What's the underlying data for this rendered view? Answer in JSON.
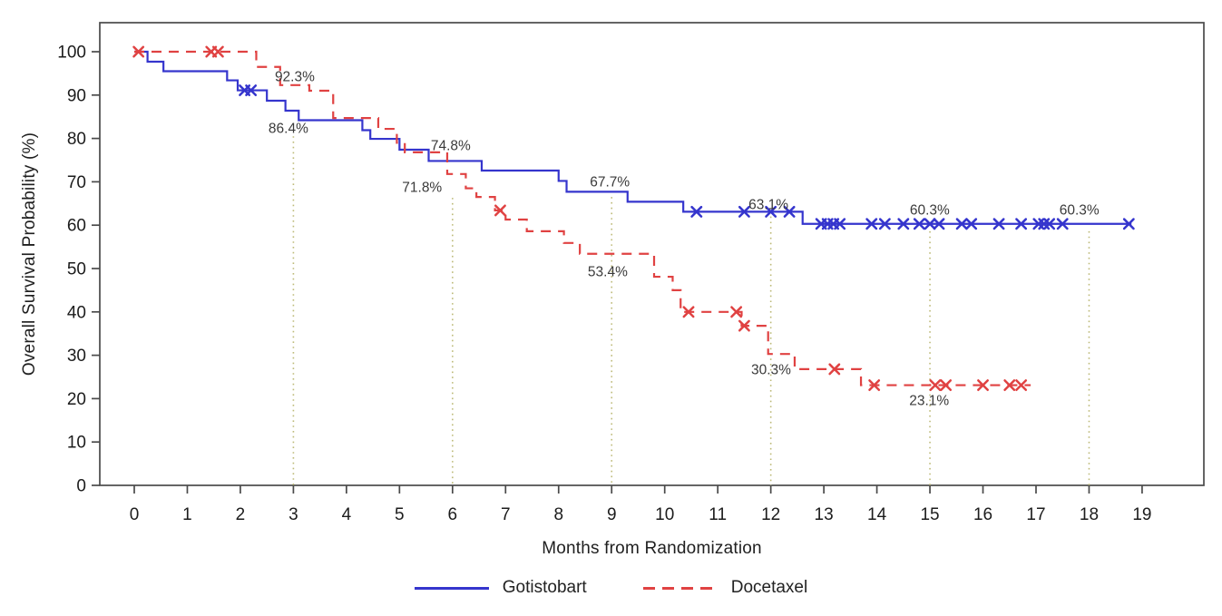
{
  "chart_data": {
    "type": "line",
    "subtype": "kaplan-meier-step",
    "title": "",
    "xlabel": "Months from Randomization",
    "ylabel": "Overall Survival Probability (%)",
    "xlim": [
      0,
      19
    ],
    "ylim": [
      0,
      100
    ],
    "x_ticks": [
      0,
      1,
      2,
      3,
      4,
      5,
      6,
      7,
      8,
      9,
      10,
      11,
      12,
      13,
      14,
      15,
      16,
      17,
      18,
      19
    ],
    "y_ticks": [
      0,
      10,
      20,
      30,
      40,
      50,
      60,
      70,
      80,
      90,
      100
    ],
    "grid": "off",
    "legend_position": "bottom",
    "reference_lines": [
      {
        "month": 3,
        "top_pct": 80.5
      },
      {
        "month": 6,
        "top_pct": 66.3
      },
      {
        "month": 9,
        "top_pct": 66.5
      },
      {
        "month": 12,
        "top_pct": 62.0
      },
      {
        "month": 15,
        "top_pct": 58.6
      },
      {
        "month": 18,
        "top_pct": 58.6
      }
    ],
    "series": [
      {
        "name": "Gotistobart",
        "color": "#3535cd",
        "style": "solid",
        "steps": [
          [
            0,
            100
          ],
          [
            0.25,
            97.7
          ],
          [
            0.55,
            95.5
          ],
          [
            1.75,
            93.4
          ],
          [
            1.95,
            91.1
          ],
          [
            2.5,
            88.7
          ],
          [
            2.85,
            86.4
          ],
          [
            3.1,
            84.2
          ],
          [
            4.3,
            81.9
          ],
          [
            4.45,
            79.9
          ],
          [
            5.0,
            77.4
          ],
          [
            5.55,
            74.8
          ],
          [
            6.55,
            72.6
          ],
          [
            8.0,
            70.2
          ],
          [
            8.15,
            67.7
          ],
          [
            9.3,
            65.4
          ],
          [
            10.35,
            63.1
          ],
          [
            12.6,
            60.3
          ]
        ],
        "end_month": 18.8,
        "censors": [
          [
            2.08,
            91.1
          ],
          [
            2.2,
            91.1
          ],
          [
            10.6,
            63.1
          ],
          [
            11.5,
            63.1
          ],
          [
            12.0,
            63.1
          ],
          [
            12.35,
            63.1
          ],
          [
            12.95,
            60.3
          ],
          [
            13.07,
            60.3
          ],
          [
            13.18,
            60.3
          ],
          [
            13.3,
            60.3
          ],
          [
            13.9,
            60.3
          ],
          [
            14.15,
            60.3
          ],
          [
            14.5,
            60.3
          ],
          [
            14.8,
            60.3
          ],
          [
            15.0,
            60.3
          ],
          [
            15.17,
            60.3
          ],
          [
            15.6,
            60.3
          ],
          [
            15.78,
            60.3
          ],
          [
            16.3,
            60.3
          ],
          [
            16.72,
            60.3
          ],
          [
            17.05,
            60.3
          ],
          [
            17.15,
            60.3
          ],
          [
            17.25,
            60.3
          ],
          [
            17.5,
            60.3
          ],
          [
            18.75,
            60.3
          ]
        ],
        "milestones": {
          "month_3": 86.4,
          "month_6": 74.8,
          "month_9": 67.7,
          "month_12": 63.1,
          "month_15": 60.3,
          "month_18": 60.3
        }
      },
      {
        "name": "Docetaxel",
        "color": "#e04242",
        "style": "dashed",
        "steps": [
          [
            0,
            100
          ],
          [
            2.3,
            96.5
          ],
          [
            2.75,
            92.3
          ],
          [
            3.3,
            91.0
          ],
          [
            3.75,
            84.7
          ],
          [
            4.6,
            82.2
          ],
          [
            4.95,
            79.0
          ],
          [
            5.1,
            76.8
          ],
          [
            5.9,
            71.8
          ],
          [
            6.25,
            68.5
          ],
          [
            6.45,
            66.5
          ],
          [
            6.8,
            63.4
          ],
          [
            7.0,
            61.3
          ],
          [
            7.4,
            58.6
          ],
          [
            8.1,
            55.9
          ],
          [
            8.4,
            53.4
          ],
          [
            9.8,
            48.1
          ],
          [
            10.15,
            45.0
          ],
          [
            10.3,
            40.0
          ],
          [
            11.45,
            36.8
          ],
          [
            11.95,
            30.3
          ],
          [
            12.45,
            26.8
          ],
          [
            13.7,
            23.1
          ]
        ],
        "end_month": 16.9,
        "censors": [
          [
            0.08,
            100
          ],
          [
            1.45,
            100
          ],
          [
            1.58,
            100
          ],
          [
            6.9,
            63.4
          ],
          [
            10.45,
            40.0
          ],
          [
            11.35,
            40.0
          ],
          [
            11.5,
            36.8
          ],
          [
            13.2,
            26.8
          ],
          [
            13.95,
            23.1
          ],
          [
            15.1,
            23.1
          ],
          [
            15.3,
            23.1
          ],
          [
            16.0,
            23.1
          ],
          [
            16.5,
            23.1
          ],
          [
            16.72,
            23.1
          ]
        ],
        "milestones": {
          "month_3": 92.3,
          "month_6": 71.8,
          "month_9": 53.4,
          "month_12": 30.3,
          "month_15": 23.1
        }
      }
    ],
    "annotations": [
      {
        "text": "92.3%",
        "month": 2.65,
        "pct": 94.3
      },
      {
        "text": "86.4%",
        "month": 2.53,
        "pct": 82.4
      },
      {
        "text": "74.8%",
        "month": 5.59,
        "pct": 78.5
      },
      {
        "text": "71.8%",
        "month": 5.05,
        "pct": 68.8
      },
      {
        "text": "67.7%",
        "month": 8.59,
        "pct": 70.1
      },
      {
        "text": "53.4%",
        "month": 8.55,
        "pct": 49.4
      },
      {
        "text": "63.1%",
        "month": 11.58,
        "pct": 64.9
      },
      {
        "text": "30.3%",
        "month": 11.63,
        "pct": 26.8
      },
      {
        "text": "60.3%",
        "month": 14.62,
        "pct": 63.6
      },
      {
        "text": "23.1%",
        "month": 14.61,
        "pct": 19.7
      },
      {
        "text": "60.3%",
        "month": 17.44,
        "pct": 63.6
      }
    ]
  },
  "colors": {
    "axis": "#4a4a4a",
    "tick_label": "#1c1c1c",
    "annotation_text": "#3a3a3a",
    "reference_line": "#bdba78",
    "background": "#ffffff"
  }
}
